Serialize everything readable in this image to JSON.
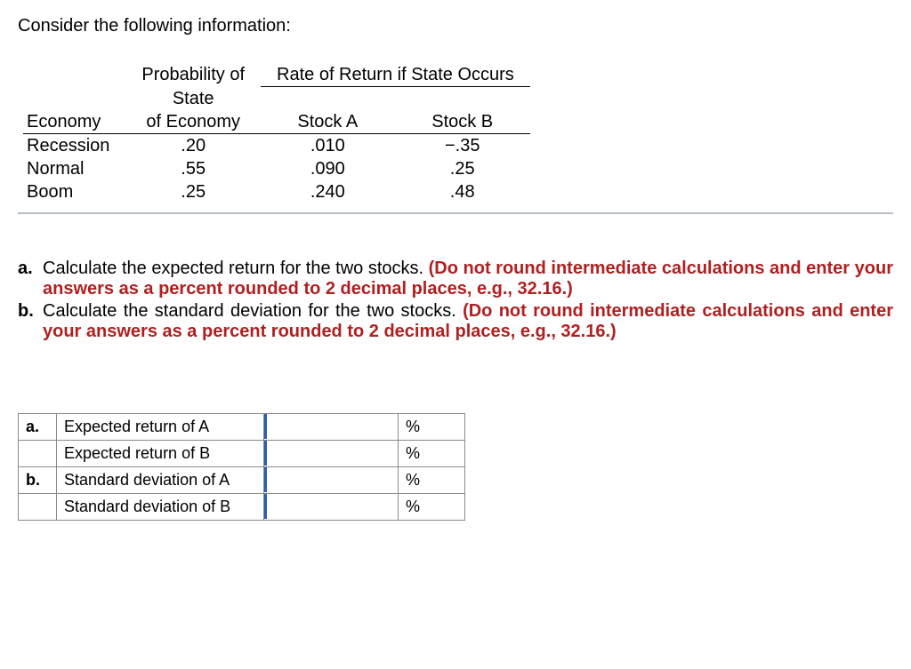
{
  "intro": "Consider the following information:",
  "table": {
    "headers": {
      "col1_blank": "",
      "prob_line1": "Probability of",
      "prob_line2": "State",
      "prob_line3": "of Economy",
      "rate_header": "Rate of Return if State Occurs",
      "economy": "Economy",
      "stockA": "Stock A",
      "stockB": "Stock B"
    },
    "rows": [
      {
        "state": "Recession",
        "prob": ".20",
        "a": ".010",
        "b": "−.35"
      },
      {
        "state": "Normal",
        "prob": ".55",
        "a": ".090",
        "b": ".25"
      },
      {
        "state": "Boom",
        "prob": ".25",
        "a": ".240",
        "b": ".48"
      }
    ]
  },
  "questions": {
    "a": {
      "letter": "a.",
      "text": "Calculate the expected return for the two stocks. ",
      "note": "(Do not round intermediate calculations and enter your answers as a percent rounded to 2 decimal places, e.g., 32.16.)"
    },
    "b": {
      "letter": "b.",
      "text": "Calculate the standard deviation for the two stocks. ",
      "note": "(Do not round intermediate calculations and enter your answers as a percent rounded to 2 decimal places, e.g., 32.16.)"
    }
  },
  "answers": {
    "unit": "%",
    "rows": [
      {
        "letter": "a.",
        "label": "Expected return of A"
      },
      {
        "letter": "",
        "label": "Expected return of B"
      },
      {
        "letter": "b.",
        "label": "Standard deviation of A"
      },
      {
        "letter": "",
        "label": "Standard deviation of B"
      }
    ]
  },
  "colors": {
    "text": "#000000",
    "emphasis": "#b11f20",
    "border": "#8a8a8a",
    "input_accent": "#2a5db0",
    "background": "#ffffff"
  }
}
